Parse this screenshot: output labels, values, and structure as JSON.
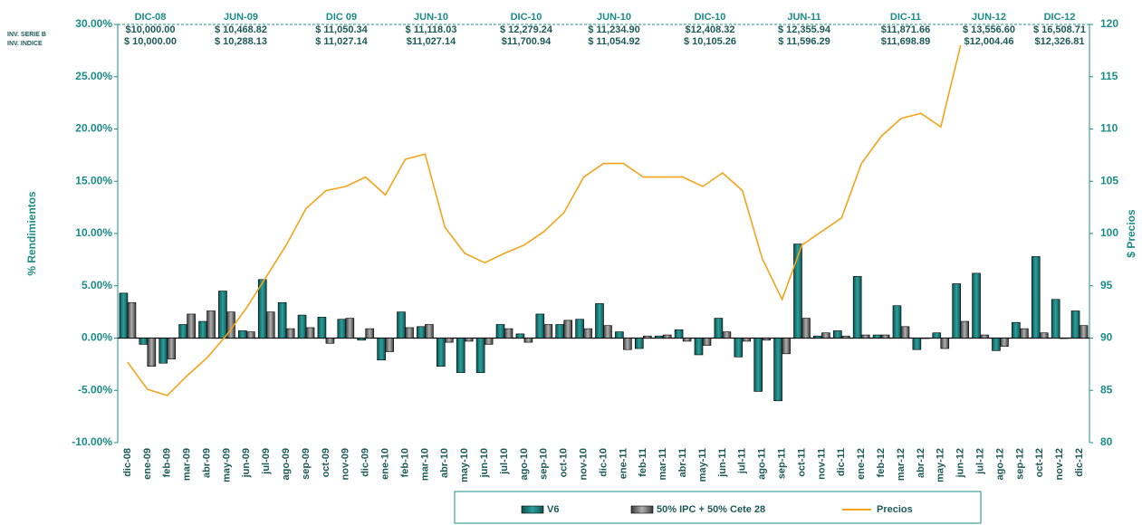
{
  "chart_data": {
    "type": "bar",
    "categories": [
      "dic-08",
      "ene-09",
      "feb-09",
      "mar-09",
      "abr-09",
      "may-09",
      "jun-09",
      "jul-09",
      "ago-09",
      "sep-09",
      "oct-09",
      "nov-09",
      "dic-09",
      "ene-10",
      "feb-10",
      "mar-10",
      "abr-10",
      "may-10",
      "jun-10",
      "jul-10",
      "ago-10",
      "sep-10",
      "oct-10",
      "nov-10",
      "dic-10",
      "ene-11",
      "feb-11",
      "mar-11",
      "abr-11",
      "may-11",
      "jun-11",
      "jul-11",
      "ago-11",
      "sep-11",
      "oct-11",
      "nov-11",
      "dic-11",
      "ene-12",
      "feb-12",
      "mar-12",
      "abr-12",
      "may-12",
      "jun-12",
      "jul-12",
      "ago-12",
      "sep-12",
      "oct-12",
      "nov-12",
      "dic-12"
    ],
    "series": [
      {
        "name": "V6",
        "type": "bar",
        "color": "#1b7f7c",
        "values": [
          4.3,
          -0.6,
          -2.4,
          1.3,
          1.6,
          4.5,
          0.7,
          5.6,
          3.4,
          2.2,
          2.0,
          1.8,
          -0.2,
          -2.1,
          2.5,
          1.1,
          -2.7,
          -3.3,
          -3.3,
          1.3,
          0.4,
          2.3,
          1.3,
          1.8,
          3.3,
          0.6,
          -1.0,
          0.2,
          0.8,
          -1.6,
          1.9,
          -1.8,
          -5.1,
          -6.0,
          9.0,
          0.2,
          0.7,
          5.9,
          0.3,
          3.1,
          -1.1,
          0.5,
          5.2,
          6.2,
          -1.2,
          1.5,
          7.8,
          3.7,
          2.6
        ]
      },
      {
        "name": "50% IPC + 50% Cete 28",
        "type": "bar",
        "color": "#6e6e6e",
        "values": [
          3.4,
          -2.7,
          -2.0,
          2.3,
          2.6,
          2.5,
          0.6,
          2.5,
          0.9,
          1.0,
          -0.5,
          1.9,
          0.9,
          -1.3,
          1.0,
          1.3,
          -0.4,
          -0.3,
          -0.6,
          0.9,
          -0.4,
          1.3,
          1.7,
          0.9,
          1.2,
          -1.1,
          0.2,
          0.3,
          -0.3,
          -0.7,
          0.6,
          -0.3,
          -0.2,
          -1.5,
          1.9,
          0.5,
          0.2,
          0.3,
          0.3,
          1.1,
          0.0,
          -1.0,
          1.6,
          0.3,
          -0.8,
          0.9,
          0.5,
          0.0,
          1.2
        ]
      },
      {
        "name": "Precios",
        "type": "line",
        "axis": "y2",
        "color": "#f5a31a",
        "values": [
          87.7,
          85.1,
          84.5,
          86.4,
          88.1,
          90.3,
          92.9,
          95.9,
          98.9,
          102.4,
          104.1,
          104.5,
          105.4,
          103.7,
          107.1,
          107.6,
          100.6,
          98.1,
          97.2,
          98.1,
          98.9,
          100.2,
          102.0,
          105.4,
          106.7,
          106.7,
          105.4,
          105.4,
          105.4,
          104.5,
          105.8,
          104.1,
          97.6,
          93.7,
          98.9,
          100.2,
          101.5,
          106.7,
          109.3,
          111.0,
          111.5,
          110.2,
          118.0,
          null,
          null,
          null,
          null,
          null,
          null
        ]
      }
    ],
    "ylabel": "% Rendimientos",
    "y2label": "$ Precios",
    "ylim": [
      -10,
      30
    ],
    "yticks": [
      {
        "value": -10,
        "label": "-10.00%"
      },
      {
        "value": -5,
        "label": "-5.00%"
      },
      {
        "value": 0,
        "label": "0.00%"
      },
      {
        "value": 5,
        "label": "5.00%"
      },
      {
        "value": 10,
        "label": "10.00%"
      },
      {
        "value": 15,
        "label": "15.00%"
      },
      {
        "value": 20,
        "label": "20.00%"
      },
      {
        "value": 25,
        "label": "25.00%"
      },
      {
        "value": 30,
        "label": "30.00%"
      }
    ],
    "y2lim": [
      80,
      120
    ],
    "y2ticks": [
      80,
      85,
      90,
      95,
      100,
      105,
      110,
      115,
      120
    ],
    "legend": "bottom",
    "header_table": {
      "row_labels": [
        "INV. SERIE B",
        "INV. INDICE"
      ],
      "columns": [
        {
          "label": "DIC-08",
          "serie_b": "$10,000.00",
          "indice": "$ 10,000.00"
        },
        {
          "label": "JUN-09",
          "serie_b": "$ 10,468.82",
          "indice": "$ 10,288.13"
        },
        {
          "label": "DIC 09",
          "serie_b": "$ 11,050.34",
          "indice": "$ 11,027.14"
        },
        {
          "label": "JUN-10",
          "serie_b": "$ 11,118.03",
          "indice": "$11,027.14"
        },
        {
          "label": "DIC-10",
          "serie_b": "$ 12,279.24",
          "indice": "$11,700.94"
        },
        {
          "label": "JUN-10",
          "serie_b": "$ 11,234.90",
          "indice": "$ 11,054.92"
        },
        {
          "label": "DIC-10",
          "serie_b": "$12,408.32",
          "indice": "$ 10,105.26"
        },
        {
          "label": "JUN-11",
          "serie_b": "$ 12,355.94",
          "indice": "$ 11,596.29"
        },
        {
          "label": "DIC-11",
          "serie_b": "$11,871.66",
          "indice": "$11,698.89"
        },
        {
          "label": "JUN-12",
          "serie_b": "$ 13,556.60",
          "indice": "$12,004.46"
        },
        {
          "label": "DIC-12",
          "serie_b": "$ 16,508.71",
          "indice": "$12,326.81"
        }
      ]
    }
  }
}
